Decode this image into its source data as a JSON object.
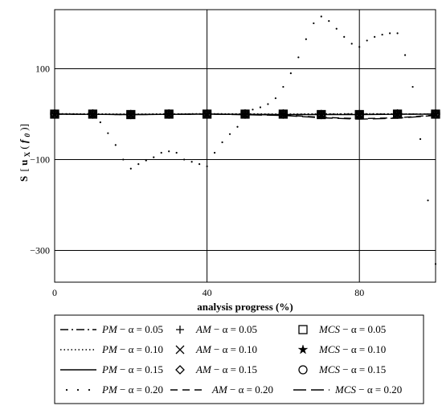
{
  "chart_data": {
    "type": "line",
    "xlabel": "analysis progress (%)",
    "ylabel_prefix": "S",
    "ylabel_u": "u",
    "ylabel_sub": "X",
    "ylabel_arg": "f",
    "ylabel_arg_sub": "0",
    "xlim": [
      0,
      100
    ],
    "ylim": [
      -370,
      230
    ],
    "xticks": [
      0,
      40,
      80
    ],
    "yticks": [
      100,
      -100,
      -300
    ],
    "xtick_labels": [
      "0",
      "40",
      "80"
    ],
    "ytick_labels": [
      "100",
      "−100",
      "−300"
    ],
    "grid": true,
    "legend_position": "bottom",
    "series": [
      {
        "name": "PM − α = 0.05",
        "style": "dashdot",
        "marker": "none",
        "x": [
          0,
          20,
          40,
          60,
          80,
          100
        ],
        "y": [
          0,
          -1,
          0,
          -1,
          0,
          0
        ]
      },
      {
        "name": "AM − α = 0.05",
        "style": "none",
        "marker": "plus",
        "x": [
          0,
          10,
          20,
          30,
          40,
          50,
          60,
          70,
          80,
          90,
          100
        ],
        "y": [
          0,
          0,
          -1,
          0,
          0,
          0,
          0,
          -1,
          -1,
          0,
          0
        ]
      },
      {
        "name": "MCS − α = 0.05",
        "style": "none",
        "marker": "square",
        "x": [
          0,
          10,
          20,
          30,
          40,
          50,
          60,
          70,
          80,
          90,
          100
        ],
        "y": [
          0,
          0,
          -1,
          0,
          0,
          0,
          0,
          -1,
          -1,
          0,
          0
        ]
      },
      {
        "name": "PM − α = 0.10",
        "style": "dotted",
        "marker": "none",
        "x": [
          0,
          20,
          40,
          60,
          80,
          100
        ],
        "y": [
          1,
          0,
          1,
          0,
          1,
          0
        ]
      },
      {
        "name": "AM − α = 0.10",
        "style": "none",
        "marker": "cross",
        "x": [
          0,
          10,
          20,
          30,
          40,
          50,
          60,
          70,
          80,
          90,
          100
        ],
        "y": [
          0,
          0,
          -1,
          0,
          0,
          0,
          0,
          -1,
          -1,
          0,
          0
        ]
      },
      {
        "name": "MCS − α = 0.10",
        "style": "none",
        "marker": "star",
        "x": [
          0,
          10,
          20,
          30,
          40,
          50,
          60,
          70,
          80,
          90,
          100
        ],
        "y": [
          0,
          0,
          -1,
          0,
          0,
          0,
          0,
          -1,
          -1,
          0,
          0
        ]
      },
      {
        "name": "PM − α = 0.15",
        "style": "solid",
        "marker": "none",
        "x": [
          0,
          20,
          40,
          60,
          80,
          100
        ],
        "y": [
          0,
          -1,
          0,
          -1,
          -1,
          0
        ]
      },
      {
        "name": "AM − α = 0.15",
        "style": "none",
        "marker": "diamond",
        "x": [
          0,
          10,
          20,
          30,
          40,
          50,
          60,
          70,
          80,
          90,
          100
        ],
        "y": [
          0,
          0,
          -1,
          0,
          0,
          0,
          0,
          -1,
          -1,
          0,
          0
        ]
      },
      {
        "name": "MCS − α = 0.15",
        "style": "none",
        "marker": "circle",
        "x": [
          0,
          10,
          20,
          30,
          40,
          50,
          60,
          70,
          80,
          90,
          100
        ],
        "y": [
          0,
          0,
          -1,
          0,
          0,
          0,
          0,
          -1,
          -1,
          0,
          0
        ]
      },
      {
        "name": "PM − α = 0.20",
        "style": "sparse-dotted",
        "marker": "none",
        "x": [
          0,
          5,
          10,
          12,
          14,
          16,
          18,
          20,
          22,
          24,
          26,
          28,
          30,
          32,
          34,
          36,
          38,
          40,
          42,
          44,
          46,
          48,
          50,
          52,
          54,
          56,
          58,
          60,
          62,
          64,
          66,
          68,
          70,
          72,
          74,
          76,
          78,
          80,
          82,
          84,
          86,
          88,
          90,
          92,
          94,
          96,
          98,
          100
        ],
        "y": [
          0,
          0,
          -5,
          -18,
          -42,
          -68,
          -100,
          -120,
          -110,
          -102,
          -95,
          -85,
          -82,
          -85,
          -100,
          -105,
          -110,
          -115,
          -85,
          -62,
          -44,
          -28,
          -5,
          10,
          15,
          22,
          35,
          60,
          90,
          125,
          165,
          200,
          215,
          205,
          188,
          170,
          155,
          148,
          162,
          170,
          175,
          178,
          178,
          130,
          60,
          -55,
          -190,
          -330
        ]
      },
      {
        "name": "AM − α = 0.20",
        "style": "dashed",
        "marker": "none",
        "x": [
          0,
          20,
          40,
          60,
          70,
          80,
          90,
          100
        ],
        "y": [
          0,
          -1,
          0,
          -2,
          -7,
          -10,
          -8,
          -2
        ]
      },
      {
        "name": "MCS − α = 0.20",
        "style": "longdash",
        "marker": "none",
        "x": [
          0,
          20,
          40,
          60,
          70,
          80,
          90,
          100
        ],
        "y": [
          0,
          -1,
          0,
          -3,
          -8,
          -11,
          -9,
          -3
        ]
      }
    ]
  }
}
